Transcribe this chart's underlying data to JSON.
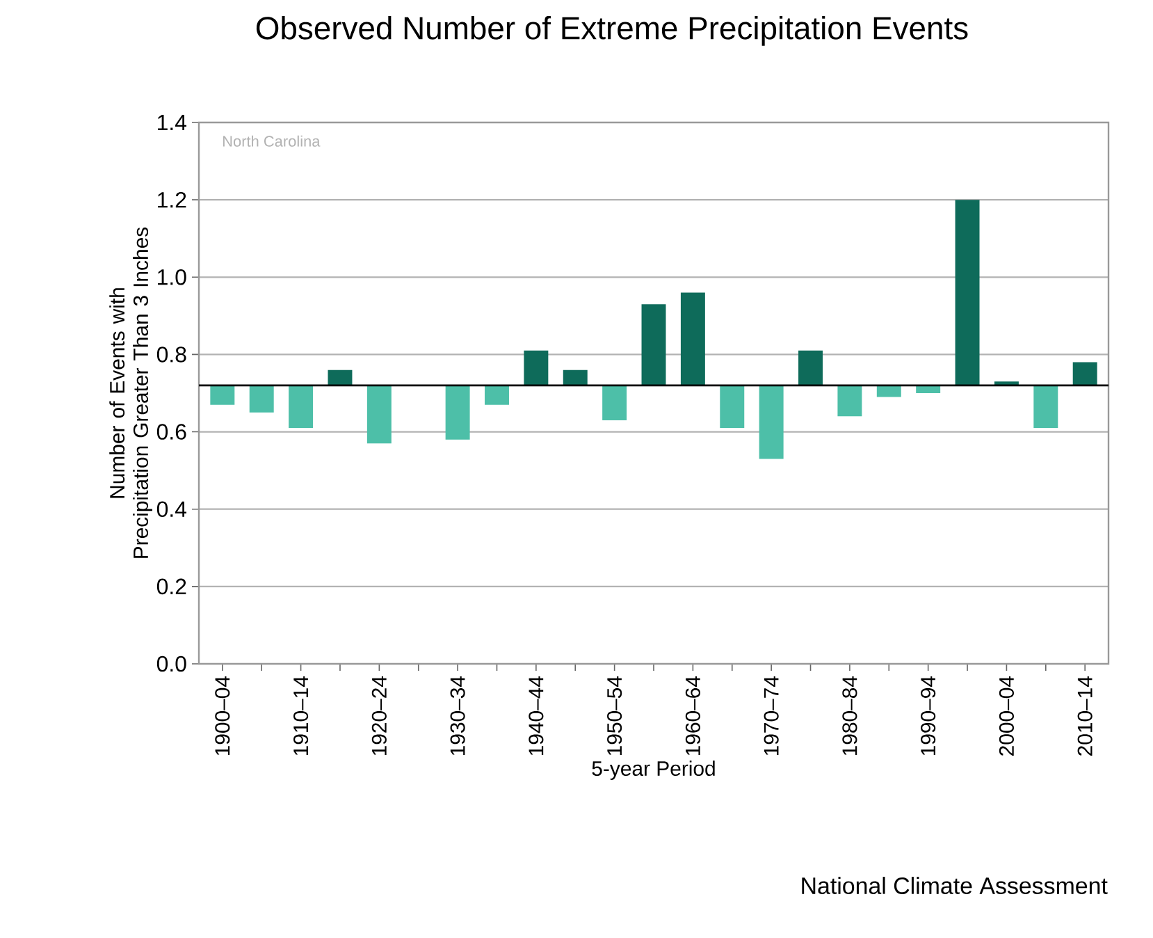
{
  "chart_data": {
    "type": "bar",
    "title": "Observed Number of Extreme Precipitation Events",
    "xlabel": "5-year Period",
    "ylabel": "Number of Events with Precipitation Greater Than 3 Inches",
    "annotations": [
      "North Carolina",
      "National Climate Assessment"
    ],
    "categories": [
      "1900–04",
      null,
      "1910–14",
      null,
      "1920–24",
      null,
      "1930–34",
      null,
      "1940–44",
      null,
      "1950–54",
      null,
      "1960–64",
      null,
      "1970–74",
      null,
      "1980–84",
      null,
      "1990–94",
      null,
      "2000–04",
      null,
      "2010–14"
    ],
    "base": [
      0.72,
      0.72,
      0.72,
      0.72,
      0.72,
      null,
      0.72,
      0.72,
      0.72,
      0.72,
      0.72,
      0.72,
      0.72,
      0.72,
      0.72,
      0.72,
      0.72,
      0.72,
      0.72,
      0.72,
      0.72,
      0.72,
      0.72
    ],
    "values": [
      -0.05,
      -0.07,
      -0.11,
      0.04,
      -0.15,
      null,
      -0.14,
      -0.05,
      0.09,
      0.04,
      -0.09,
      0.21,
      0.24,
      -0.11,
      -0.19,
      0.09,
      -0.08,
      -0.03,
      -0.02,
      0.48,
      0.01,
      -0.11,
      0.06
    ],
    "colors": [
      "#4dbfa8",
      "#4dbfa8",
      "#4dbfa8",
      "#0e6b5a",
      "#4dbfa8",
      "#4dbfa8",
      "#4dbfa8",
      "#4dbfa8",
      "#0e6b5a",
      "#0e6b5a",
      "#4dbfa8",
      "#0e6b5a",
      "#0e6b5a",
      "#4dbfa8",
      "#4dbfa8",
      "#0e6b5a",
      "#4dbfa8",
      "#4dbfa8",
      "#4dbfa8",
      "#0e6b5a",
      "#0e6b5a",
      "#4dbfa8",
      "#0e6b5a"
    ],
    "ylim": [
      0,
      1.4
    ],
    "yticks": [
      {
        "value": 0,
        "label": "0.0"
      },
      0.2,
      0.4,
      0.6,
      0.8,
      {
        "value": 1,
        "label": "1.0"
      },
      1.2,
      1.4
    ],
    "ref_lines": [
      {
        "axis": "y",
        "value": 0.72,
        "color": "#000000"
      }
    ],
    "grid": "y"
  }
}
